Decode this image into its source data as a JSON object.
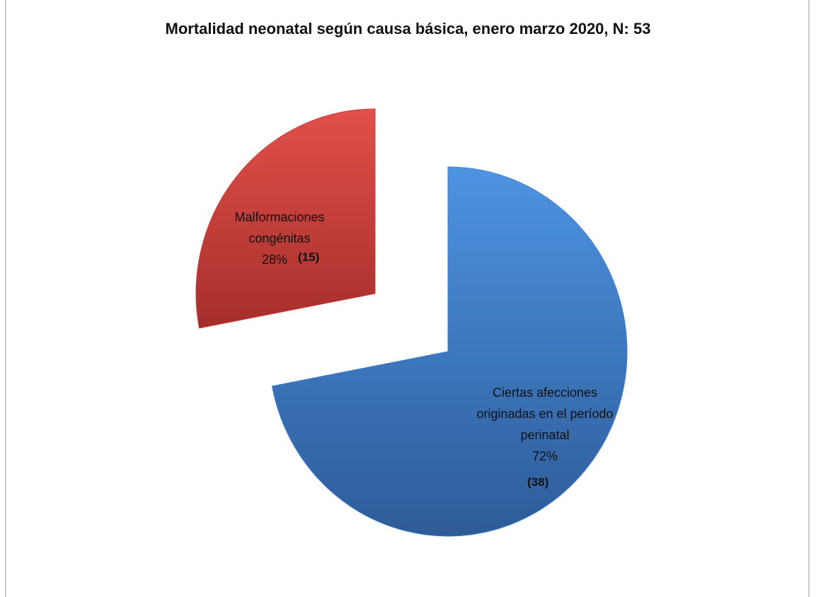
{
  "chart_data": {
    "type": "pie",
    "title": "Mortalidad neonatal según causa básica, enero marzo 2020, N: 53",
    "categories": [
      "Ciertas afecciones originadas en el período perinatal",
      "Malformaciones congénitas"
    ],
    "values": [
      72,
      28
    ],
    "value_labels": [
      "72%",
      "28%"
    ],
    "counts": [
      38,
      15
    ],
    "count_labels": [
      "(38)",
      "(15)"
    ],
    "colors": [
      "#3f7fcf",
      "#c93c38"
    ],
    "legend": false
  }
}
